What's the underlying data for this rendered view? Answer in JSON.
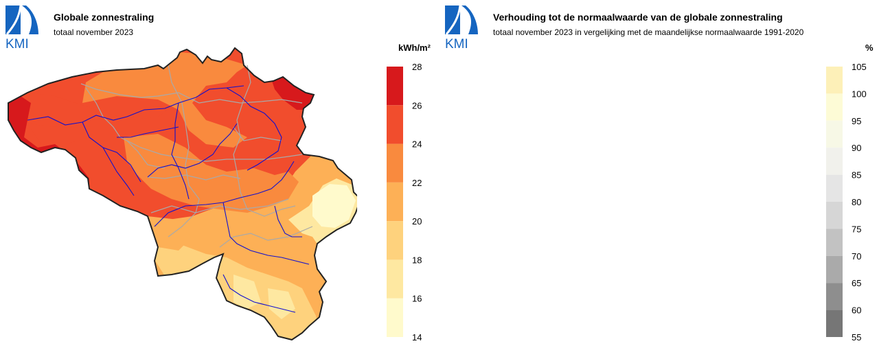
{
  "left": {
    "logo_text": "KMI",
    "title": "Globale zonnestraling",
    "subtitle": "totaal november 2023",
    "unit": "kWh/m²",
    "legend": {
      "ticks": [
        "28",
        "26",
        "24",
        "22",
        "20",
        "18",
        "16",
        "14"
      ],
      "colors": [
        "#d7191c",
        "#f14d2d",
        "#f98a3e",
        "#fdb056",
        "#fed27d",
        "#fee8a1",
        "#fffacc"
      ]
    }
  },
  "right": {
    "logo_text": "KMI",
    "title": "Verhouding tot de normaalwaarde van de globale zonnestraling",
    "subtitle": "totaal november 2023 in vergelijking met de maandelijkse normaalwaarde 1991-2020",
    "unit": "%",
    "legend": {
      "ticks": [
        "105",
        "100",
        "95",
        "90",
        "85",
        "80",
        "75",
        "70",
        "65",
        "60",
        "55"
      ],
      "colors": [
        "#fdf0b8",
        "#fdfbd6",
        "#f7f8e6",
        "#f1f1ec",
        "#e5e5e5",
        "#d6d6d6",
        "#c2c2c2",
        "#aaaaaa",
        "#8e8e8e",
        "#767676"
      ]
    }
  }
}
